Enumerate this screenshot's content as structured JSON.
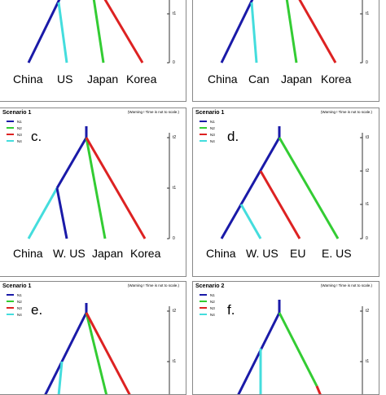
{
  "colors": {
    "N1": "#1a1aa8",
    "N2": "#33cc33",
    "N3": "#dd2222",
    "N4": "#44dddd"
  },
  "panels": [
    {
      "id": "a",
      "scenario": "",
      "warning": "",
      "legend": [],
      "label": "",
      "ticks": [
        "t1",
        "0"
      ],
      "tips": [
        "China",
        "US",
        "Japan",
        "Korea"
      ]
    },
    {
      "id": "b",
      "scenario": "",
      "warning": "",
      "legend": [],
      "label": "",
      "ticks": [
        "t1",
        "0"
      ],
      "tips": [
        "China",
        "Can",
        "Japan",
        "Korea"
      ]
    },
    {
      "id": "c",
      "scenario": "Scenario 1",
      "warning": "(Warning ! Time is not to scale.)",
      "legend": [
        "N1",
        "N2",
        "N3",
        "N4"
      ],
      "label": "c.",
      "ticks": [
        "t2",
        "t1",
        "0"
      ],
      "tips": [
        "China",
        "W. US",
        "Japan",
        "Korea"
      ]
    },
    {
      "id": "d",
      "scenario": "Scenario 1",
      "warning": "(Warning ! Time is not to scale.)",
      "legend": [
        "N1",
        "N2",
        "N3",
        "N4"
      ],
      "label": "d.",
      "ticks": [
        "t3",
        "t2",
        "t1",
        "0"
      ],
      "tips": [
        "China",
        "W. US",
        "EU",
        "E. US"
      ]
    },
    {
      "id": "e",
      "scenario": "Scenario 1",
      "warning": "(Warning ! Time is not to scale.)",
      "legend": [
        "N1",
        "N2",
        "N3",
        "N4"
      ],
      "label": "e.",
      "ticks": [
        "t2",
        "t1"
      ],
      "tips": []
    },
    {
      "id": "f",
      "scenario": "Scenario 2",
      "warning": "(Warning ! Time is not to scale.)",
      "legend": [
        "N1",
        "N2",
        "N3",
        "N4"
      ],
      "label": "f.",
      "ticks": [
        "t2",
        "t1"
      ],
      "tips": []
    }
  ]
}
